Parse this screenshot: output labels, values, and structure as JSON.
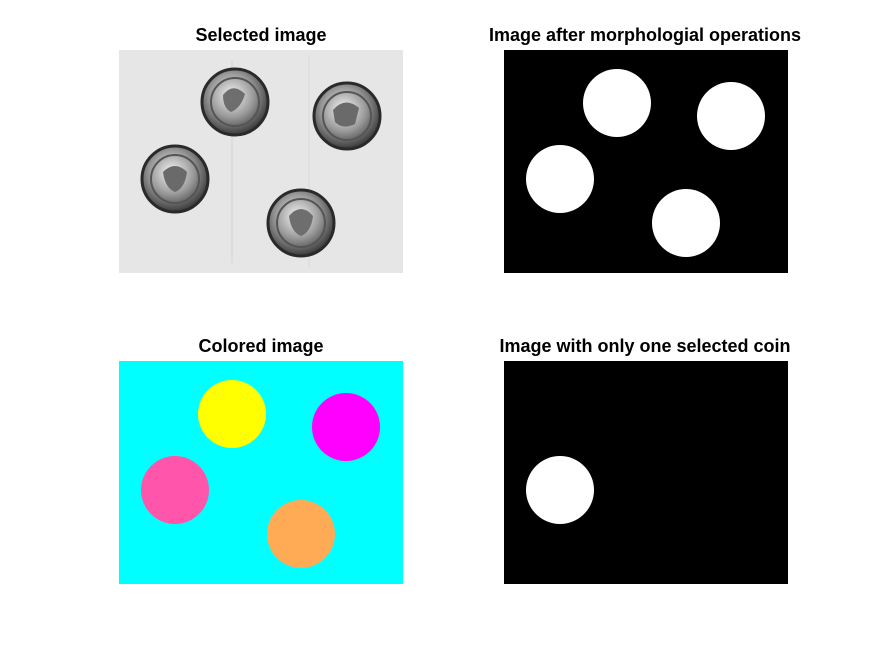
{
  "figure": {
    "panels": [
      {
        "id": "selected",
        "title": "Selected image",
        "kind": "grayscale-photo"
      },
      {
        "id": "morph",
        "title": "Image after morphologial operations",
        "kind": "binary-mask"
      },
      {
        "id": "colored",
        "title": "Colored image",
        "kind": "labeled-color"
      },
      {
        "id": "one-coin",
        "title": "Image with only one selected coin",
        "kind": "binary-mask-single"
      }
    ]
  },
  "colors": {
    "photo_background": "#e6e6e6",
    "mask_background": "#000000",
    "mask_foreground": "#ffffff",
    "label_background": "#00ffff",
    "label_coin_top": "#ffff00",
    "label_coin_right": "#ff00ff",
    "label_coin_left": "#ff55aa",
    "label_coin_bottom": "#ffaa55"
  },
  "coins": [
    {
      "name": "coin-top",
      "color_key": "label_coin_top"
    },
    {
      "name": "coin-right",
      "color_key": "label_coin_right"
    },
    {
      "name": "coin-left",
      "color_key": "label_coin_left"
    },
    {
      "name": "coin-bottom",
      "color_key": "label_coin_bottom"
    }
  ],
  "selected_coin": "coin-left"
}
